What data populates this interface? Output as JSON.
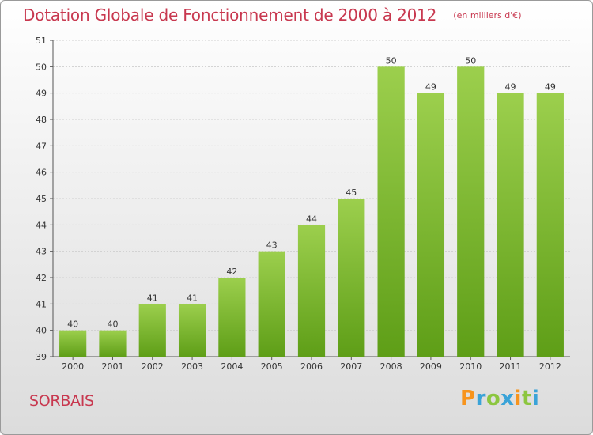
{
  "header": {
    "title": "Dotation Globale de Fonctionnement de 2000 à 2012",
    "unit": "(en milliers d'€)"
  },
  "footer": {
    "commune": "SORBAIS",
    "brand": "Proxiti",
    "brand_letters": [
      {
        "char": "P",
        "color": "#f7941d"
      },
      {
        "char": "r",
        "color": "#3aa3d8"
      },
      {
        "char": "o",
        "color": "#8cc63f"
      },
      {
        "char": "x",
        "color": "#3aa3d8"
      },
      {
        "char": "i",
        "color": "#f7941d"
      },
      {
        "char": "t",
        "color": "#8cc63f"
      },
      {
        "char": "i",
        "color": "#3aa3d8"
      }
    ]
  },
  "colors": {
    "title": "#c8384f",
    "bar_top": "#9ccf4d",
    "bar_bottom": "#5e9e17"
  },
  "chart_data": {
    "type": "bar",
    "title": "Dotation Globale de Fonctionnement de 2000 à 2012",
    "subtitle": "(en milliers d'€)",
    "xlabel": "",
    "ylabel": "",
    "categories": [
      "2000",
      "2001",
      "2002",
      "2003",
      "2004",
      "2005",
      "2006",
      "2007",
      "2008",
      "2009",
      "2010",
      "2011",
      "2012"
    ],
    "values": [
      40,
      40,
      41,
      41,
      42,
      43,
      44,
      45,
      50,
      49,
      50,
      49,
      49
    ],
    "ylim": [
      39,
      51
    ],
    "yticks": [
      39,
      40,
      41,
      42,
      43,
      44,
      45,
      46,
      47,
      48,
      49,
      50,
      51
    ],
    "grid": true,
    "legend": "none",
    "data_labels": true
  }
}
